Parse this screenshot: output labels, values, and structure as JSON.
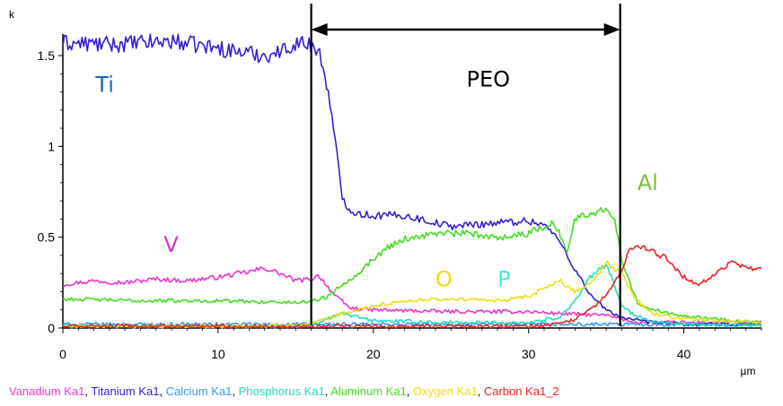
{
  "chart_data": {
    "type": "line",
    "ylabel": "k",
    "xlabel": "µm",
    "xlim": [
      0,
      45
    ],
    "ylim": [
      0,
      1.6
    ],
    "xticks": [
      "0",
      "10",
      "20",
      "30",
      "40"
    ],
    "xtick_values": [
      0,
      10,
      20,
      30,
      40
    ],
    "yticks": [
      "0",
      "0.5",
      "1",
      "1.5"
    ],
    "ytick_values": [
      0,
      0.5,
      1,
      1.5
    ],
    "series": [
      {
        "name": "Vanadium Ka1",
        "color": "#ee33cc",
        "x": [
          0,
          2,
          4,
          6,
          8,
          10,
          12,
          13,
          14,
          15,
          16,
          16.5,
          17.5,
          18.5,
          20,
          25,
          30,
          32,
          35,
          37,
          45
        ],
        "y": [
          0.24,
          0.26,
          0.25,
          0.27,
          0.26,
          0.28,
          0.31,
          0.33,
          0.3,
          0.26,
          0.27,
          0.29,
          0.18,
          0.11,
          0.1,
          0.09,
          0.09,
          0.08,
          0.07,
          0.03,
          0.03
        ]
      },
      {
        "name": "Titanium Ka1",
        "color": "#3322cc",
        "x": [
          0,
          3,
          7,
          10,
          13,
          14,
          15,
          16,
          16.5,
          17,
          17.5,
          18,
          18.5,
          19,
          20,
          22,
          25,
          28,
          30,
          31,
          32,
          33,
          34,
          35,
          36,
          37,
          38,
          40,
          45
        ],
        "y": [
          1.57,
          1.56,
          1.58,
          1.54,
          1.5,
          1.52,
          1.57,
          1.56,
          1.52,
          1.35,
          1.05,
          0.72,
          0.65,
          0.63,
          0.62,
          0.62,
          0.56,
          0.58,
          0.59,
          0.57,
          0.48,
          0.32,
          0.18,
          0.1,
          0.06,
          0.04,
          0.03,
          0.02,
          0.02
        ]
      },
      {
        "name": "Calcium Ka1",
        "color": "#3399ee",
        "x": [
          0,
          10,
          20,
          30,
          35,
          40,
          45
        ],
        "y": [
          0.02,
          0.02,
          0.02,
          0.02,
          0.02,
          0.02,
          0.02
        ]
      },
      {
        "name": "Phosphorus Ka1",
        "color": "#22ddbb",
        "x": [
          0,
          10,
          16,
          17,
          18,
          19,
          20,
          25,
          30,
          32,
          33,
          34,
          35,
          35.5,
          36,
          37,
          38,
          40,
          45
        ],
        "y": [
          0.01,
          0.01,
          0.01,
          0.05,
          0.08,
          0.06,
          0.04,
          0.03,
          0.03,
          0.06,
          0.15,
          0.28,
          0.35,
          0.25,
          0.12,
          0.06,
          0.04,
          0.02,
          0.01
        ]
      },
      {
        "name": "Aluminum Ka1",
        "color": "#44dd22",
        "x": [
          0,
          5,
          10,
          15,
          16,
          17,
          18,
          19,
          20,
          21,
          22,
          24,
          26,
          28,
          30,
          31.5,
          32,
          32.5,
          33,
          34,
          35,
          35.5,
          36,
          37,
          38,
          40,
          42,
          45
        ],
        "y": [
          0.16,
          0.15,
          0.15,
          0.14,
          0.15,
          0.17,
          0.24,
          0.3,
          0.38,
          0.45,
          0.49,
          0.52,
          0.52,
          0.5,
          0.52,
          0.58,
          0.52,
          0.42,
          0.6,
          0.63,
          0.66,
          0.62,
          0.38,
          0.14,
          0.1,
          0.07,
          0.05,
          0.03
        ]
      },
      {
        "name": "Oxygen Ka1",
        "color": "#eedd11",
        "x": [
          0,
          10,
          16,
          17,
          18,
          19,
          20,
          22,
          25,
          28,
          30,
          31,
          32,
          33,
          34,
          35,
          36,
          37,
          38,
          40,
          45
        ],
        "y": [
          0.01,
          0.01,
          0.02,
          0.05,
          0.08,
          0.1,
          0.12,
          0.15,
          0.16,
          0.15,
          0.17,
          0.22,
          0.26,
          0.2,
          0.25,
          0.36,
          0.3,
          0.15,
          0.08,
          0.05,
          0.03
        ]
      },
      {
        "name": "Carbon Ka1_2",
        "color": "#ee2222",
        "x": [
          0,
          10,
          20,
          30,
          32,
          33,
          34,
          35,
          36,
          36.5,
          37,
          38,
          39,
          40,
          41,
          42,
          43,
          44,
          45
        ],
        "y": [
          0.01,
          0.01,
          0.01,
          0.01,
          0.02,
          0.05,
          0.1,
          0.18,
          0.32,
          0.43,
          0.45,
          0.42,
          0.38,
          0.28,
          0.24,
          0.3,
          0.36,
          0.33,
          0.33
        ]
      }
    ],
    "annotations": [
      {
        "text": "Ti",
        "color": "#1a66b3",
        "x": 2.1,
        "y": 1.3
      },
      {
        "text": "V",
        "color": "#d633c8",
        "x": 6.5,
        "y": 0.42
      },
      {
        "text": "PEO",
        "color": "#000000",
        "x": 26.0,
        "y": 1.33
      },
      {
        "text": "O",
        "color": "#e8dc10",
        "x": 24.0,
        "y": 0.23
      },
      {
        "text": "P",
        "color": "#44e8e0",
        "x": 28.0,
        "y": 0.23
      },
      {
        "text": "Al",
        "color": "#7cbf3e",
        "x": 37.0,
        "y": 0.76
      }
    ],
    "region": {
      "label": "PEO",
      "x_start": 16.0,
      "x_end": 35.9
    }
  },
  "legend": {
    "items": [
      {
        "name": "Vanadium Ka1",
        "color": "#ee33cc"
      },
      {
        "name": "Titanium Ka1",
        "color": "#3322cc"
      },
      {
        "name": "Calcium Ka1",
        "color": "#3399ee"
      },
      {
        "name": "Phosphorus Ka1",
        "color": "#22ddbb"
      },
      {
        "name": "Aluminum Ka1",
        "color": "#44dd22"
      },
      {
        "name": "Oxygen Ka1",
        "color": "#eedd11"
      },
      {
        "name": "Carbon Ka1_2",
        "color": "#ee2222"
      }
    ]
  }
}
